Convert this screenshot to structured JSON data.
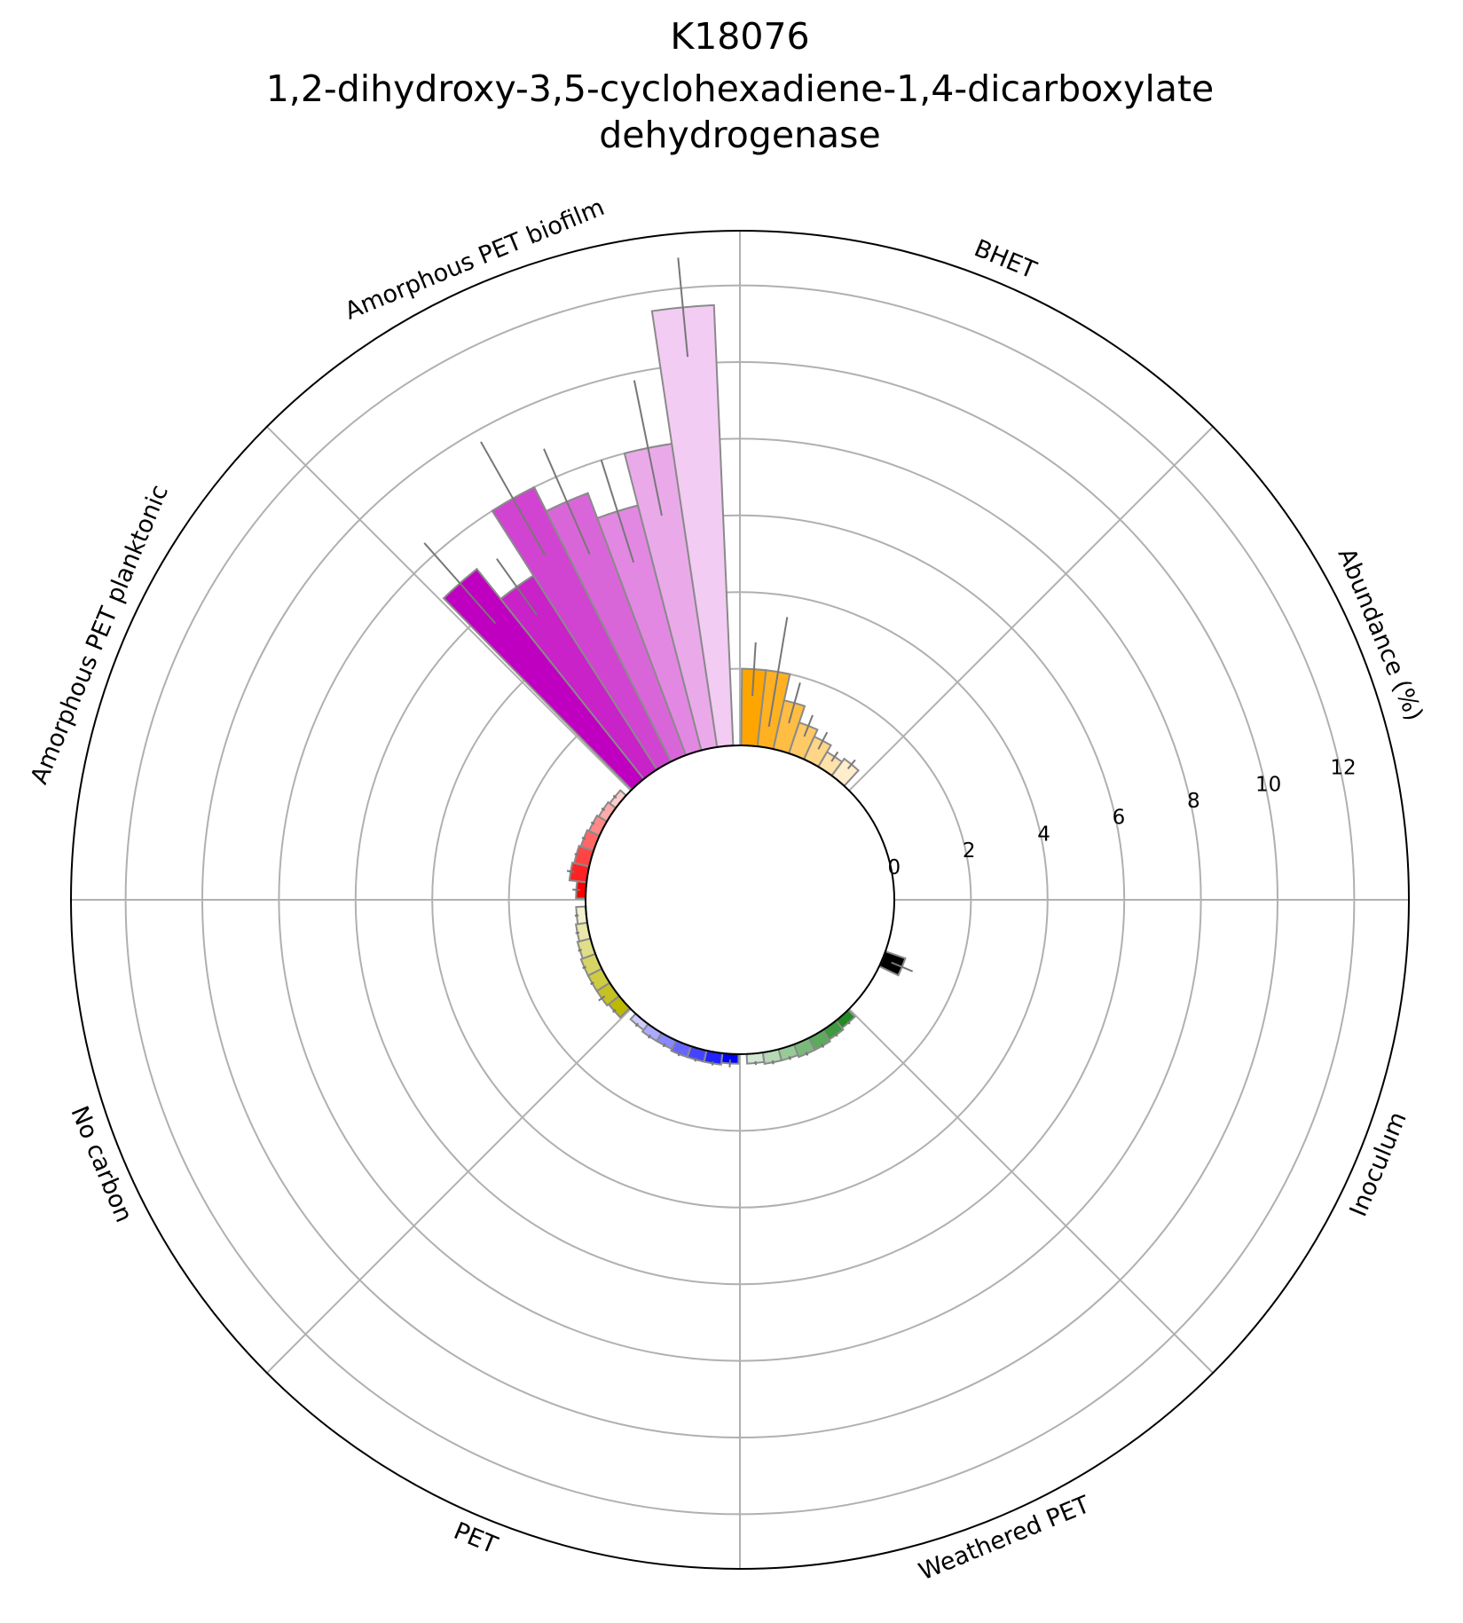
{
  "chart_data": {
    "type": "bar",
    "projection": "polar",
    "title_lines": [
      "K18076",
      "1,2-dihydroxy-3,5-cyclohexadiene-1,4-dicarboxylate",
      "dehydrogenase"
    ],
    "radial_axis_label": "Abundance (%)",
    "radial_ticks": [
      0,
      2,
      4,
      6,
      8,
      10,
      12
    ],
    "rlim": [
      0,
      13
    ],
    "grid": true,
    "categories": [
      {
        "name": "BHET",
        "center_deg": 22.5,
        "color": "#FFA500",
        "values": [
          2.0,
          2.0,
          1.3,
          0.85,
          0.65,
          0.45,
          0.55
        ],
        "errors": [
          0.7,
          1.45,
          0.55,
          0.3,
          0.25,
          0.15,
          0.15
        ]
      },
      {
        "name": "Abundance (%)",
        "center_deg": 67.5,
        "color": "#888888",
        "values": [],
        "errors": []
      },
      {
        "name": "Inoculum",
        "center_deg": 112.5,
        "color": "#000000",
        "values": [
          0.55
        ],
        "errors": [
          0.3
        ]
      },
      {
        "name": "Weathered PET",
        "center_deg": 157.5,
        "color": "#228B22",
        "values": [
          0.25,
          0.3,
          0.35,
          0.35,
          0.3,
          0.3,
          0.25
        ],
        "errors": [
          0.05,
          0.05,
          0.05,
          0.05,
          0.05,
          0.05,
          0.05
        ]
      },
      {
        "name": "PET",
        "center_deg": 202.5,
        "color": "#0000FF",
        "values": [
          0.25,
          0.3,
          0.3,
          0.3,
          0.25,
          0.25,
          0.2
        ],
        "errors": [
          0.1,
          0.05,
          0.05,
          0.05,
          0.05,
          0.05,
          0.05
        ]
      },
      {
        "name": "No carbon",
        "center_deg": 247.5,
        "color": "#BDB800",
        "values": [
          0.35,
          0.4,
          0.4,
          0.4,
          0.35,
          0.3,
          0.25
        ],
        "errors": [
          0.05,
          0.1,
          0.05,
          0.05,
          0.05,
          0.05,
          0.05
        ]
      },
      {
        "name": "Amorphous PET planktonic",
        "center_deg": 292.5,
        "color": "#FF0000",
        "values": [
          0.25,
          0.45,
          0.4,
          0.35,
          0.3,
          0.25,
          0.2
        ],
        "errors": [
          0.1,
          0.1,
          0.05,
          0.05,
          0.05,
          0.05,
          0.05
        ]
      },
      {
        "name": "Amorphous PET biofilm",
        "center_deg": 337.5,
        "color": "#C000C0",
        "values": [
          7.0,
          6.0,
          8.0,
          7.3,
          6.6,
          8.0,
          11.5
        ],
        "errors": [
          1.4,
          0.9,
          1.7,
          1.5,
          1.4,
          1.8,
          1.3
        ]
      }
    ]
  }
}
